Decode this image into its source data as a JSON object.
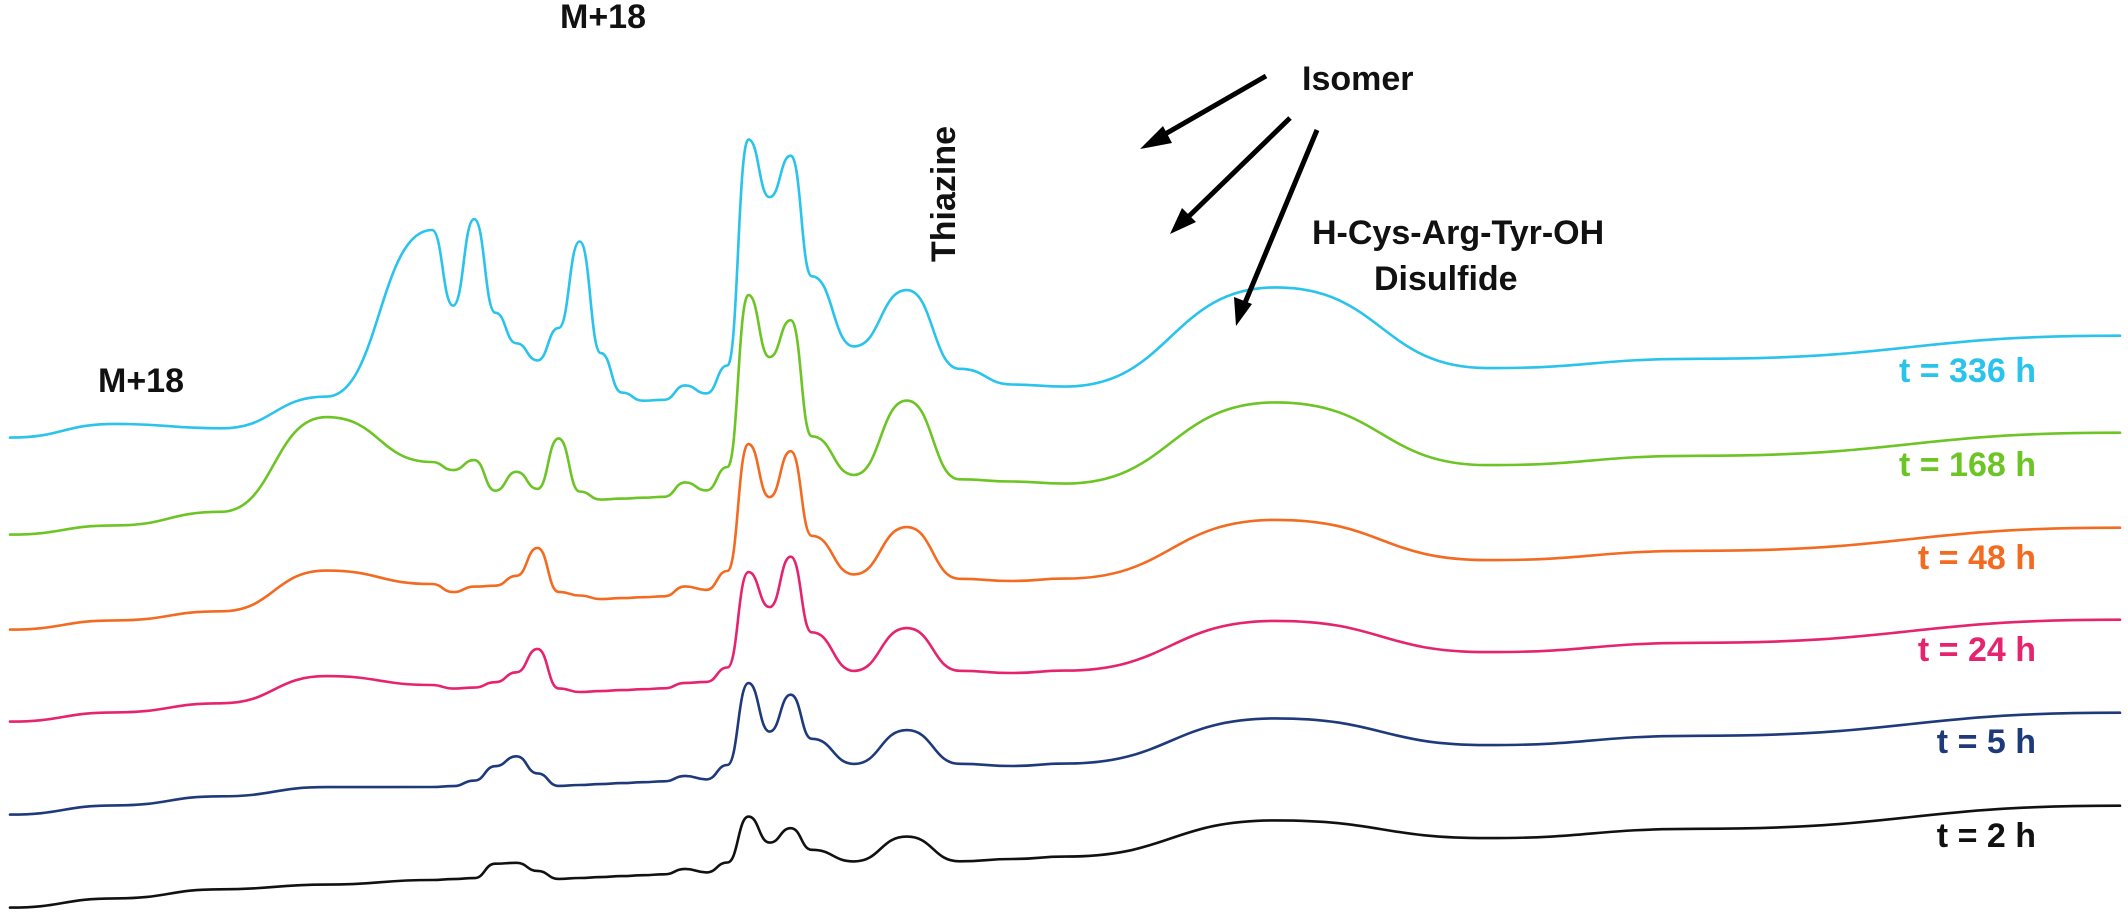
{
  "chart_data": {
    "type": "line",
    "title": "",
    "xlabel": "",
    "ylabel": "",
    "grid": false,
    "legend": "right",
    "x": [
      0,
      10,
      20,
      30,
      40,
      42,
      44,
      46,
      48,
      50,
      52,
      54,
      56,
      58,
      60,
      62,
      64,
      66,
      68,
      70,
      72,
      74,
      76,
      80,
      85,
      90,
      95,
      100,
      120,
      140,
      160,
      200
    ],
    "series": [
      {
        "name": "t = 336 h",
        "color": "#29c3ec",
        "values": [
          0,
          0.2,
          0,
          0.6,
          4.2,
          2.5,
          4.4,
          2.3,
          1.6,
          1.2,
          1.9,
          3.8,
          1.3,
          0.4,
          0.2,
          0.2,
          0.5,
          0.3,
          0.9,
          5.9,
          4.6,
          5.5,
          2.8,
          1.2,
          2.4,
          0.6,
          0.2,
          0.1,
          2.1,
          0.1,
          0.1,
          0.2
        ]
      },
      {
        "name": "t = 168 h",
        "color": "#6cc425",
        "values": [
          0,
          0.1,
          0.3,
          2.3,
          1.2,
          1.0,
          1.2,
          0.5,
          0.9,
          0.5,
          1.6,
          0.4,
          0.2,
          0.2,
          0.2,
          0.2,
          0.5,
          0.3,
          0.8,
          4.6,
          3.2,
          4.0,
          1.4,
          0.5,
          2.1,
          0.3,
          0.2,
          0.1,
          1.7,
          0.1,
          0.1,
          0.2
        ]
      },
      {
        "name": "t = 48 h",
        "color": "#f26b21",
        "values": [
          0,
          0.1,
          0.2,
          1.0,
          0.6,
          0.4,
          0.5,
          0.5,
          0.7,
          1.3,
          0.3,
          0.2,
          0.1,
          0.1,
          0.1,
          0.1,
          0.3,
          0.2,
          0.6,
          3.4,
          2.2,
          3.2,
          1.3,
          0.4,
          1.4,
          0.2,
          0.1,
          0.1,
          1.2,
          0.1,
          0.1,
          0.2
        ]
      },
      {
        "name": "t = 24 h",
        "color": "#e5236f",
        "values": [
          0,
          0.1,
          0.2,
          0.7,
          0.4,
          0.3,
          0.3,
          0.4,
          0.6,
          1.1,
          0.2,
          0.1,
          0.1,
          0.1,
          0.1,
          0.1,
          0.2,
          0.2,
          0.5,
          2.6,
          1.8,
          2.9,
          1.2,
          0.3,
          1.2,
          0.2,
          0.1,
          0.1,
          1.0,
          0.1,
          0.1,
          0.2
        ]
      },
      {
        "name": "t = 5 h",
        "color": "#1e3a7a",
        "values": [
          0,
          0.1,
          0.2,
          0.3,
          0.2,
          0.2,
          0.3,
          0.6,
          0.8,
          0.4,
          0.1,
          0.1,
          0.1,
          0.1,
          0.1,
          0.1,
          0.2,
          0.1,
          0.4,
          2.2,
          1.1,
          1.9,
          0.9,
          0.3,
          1.0,
          0.2,
          0.1,
          0.1,
          0.9,
          0.1,
          0.1,
          0.2
        ]
      },
      {
        "name": "t = 2 h",
        "color": "#111111",
        "values": [
          0,
          0.1,
          0.2,
          0.2,
          0.2,
          0.2,
          0.2,
          0.5,
          0.5,
          0.3,
          0.1,
          0.1,
          0.1,
          0.1,
          0.1,
          0.1,
          0.2,
          0.1,
          0.3,
          1.3,
          0.7,
          1.0,
          0.5,
          0.2,
          0.7,
          0.1,
          0.1,
          0.1,
          0.7,
          0.1,
          0.1,
          0.2
        ]
      }
    ],
    "annotations": {
      "m18_left": "M+18",
      "m18_top": "M+18",
      "thiazine": "Thiazine",
      "isomer": "Isomer",
      "product_line1": "H-Cys-Arg-Tyr-OH",
      "product_line2": "Disulfide"
    }
  }
}
